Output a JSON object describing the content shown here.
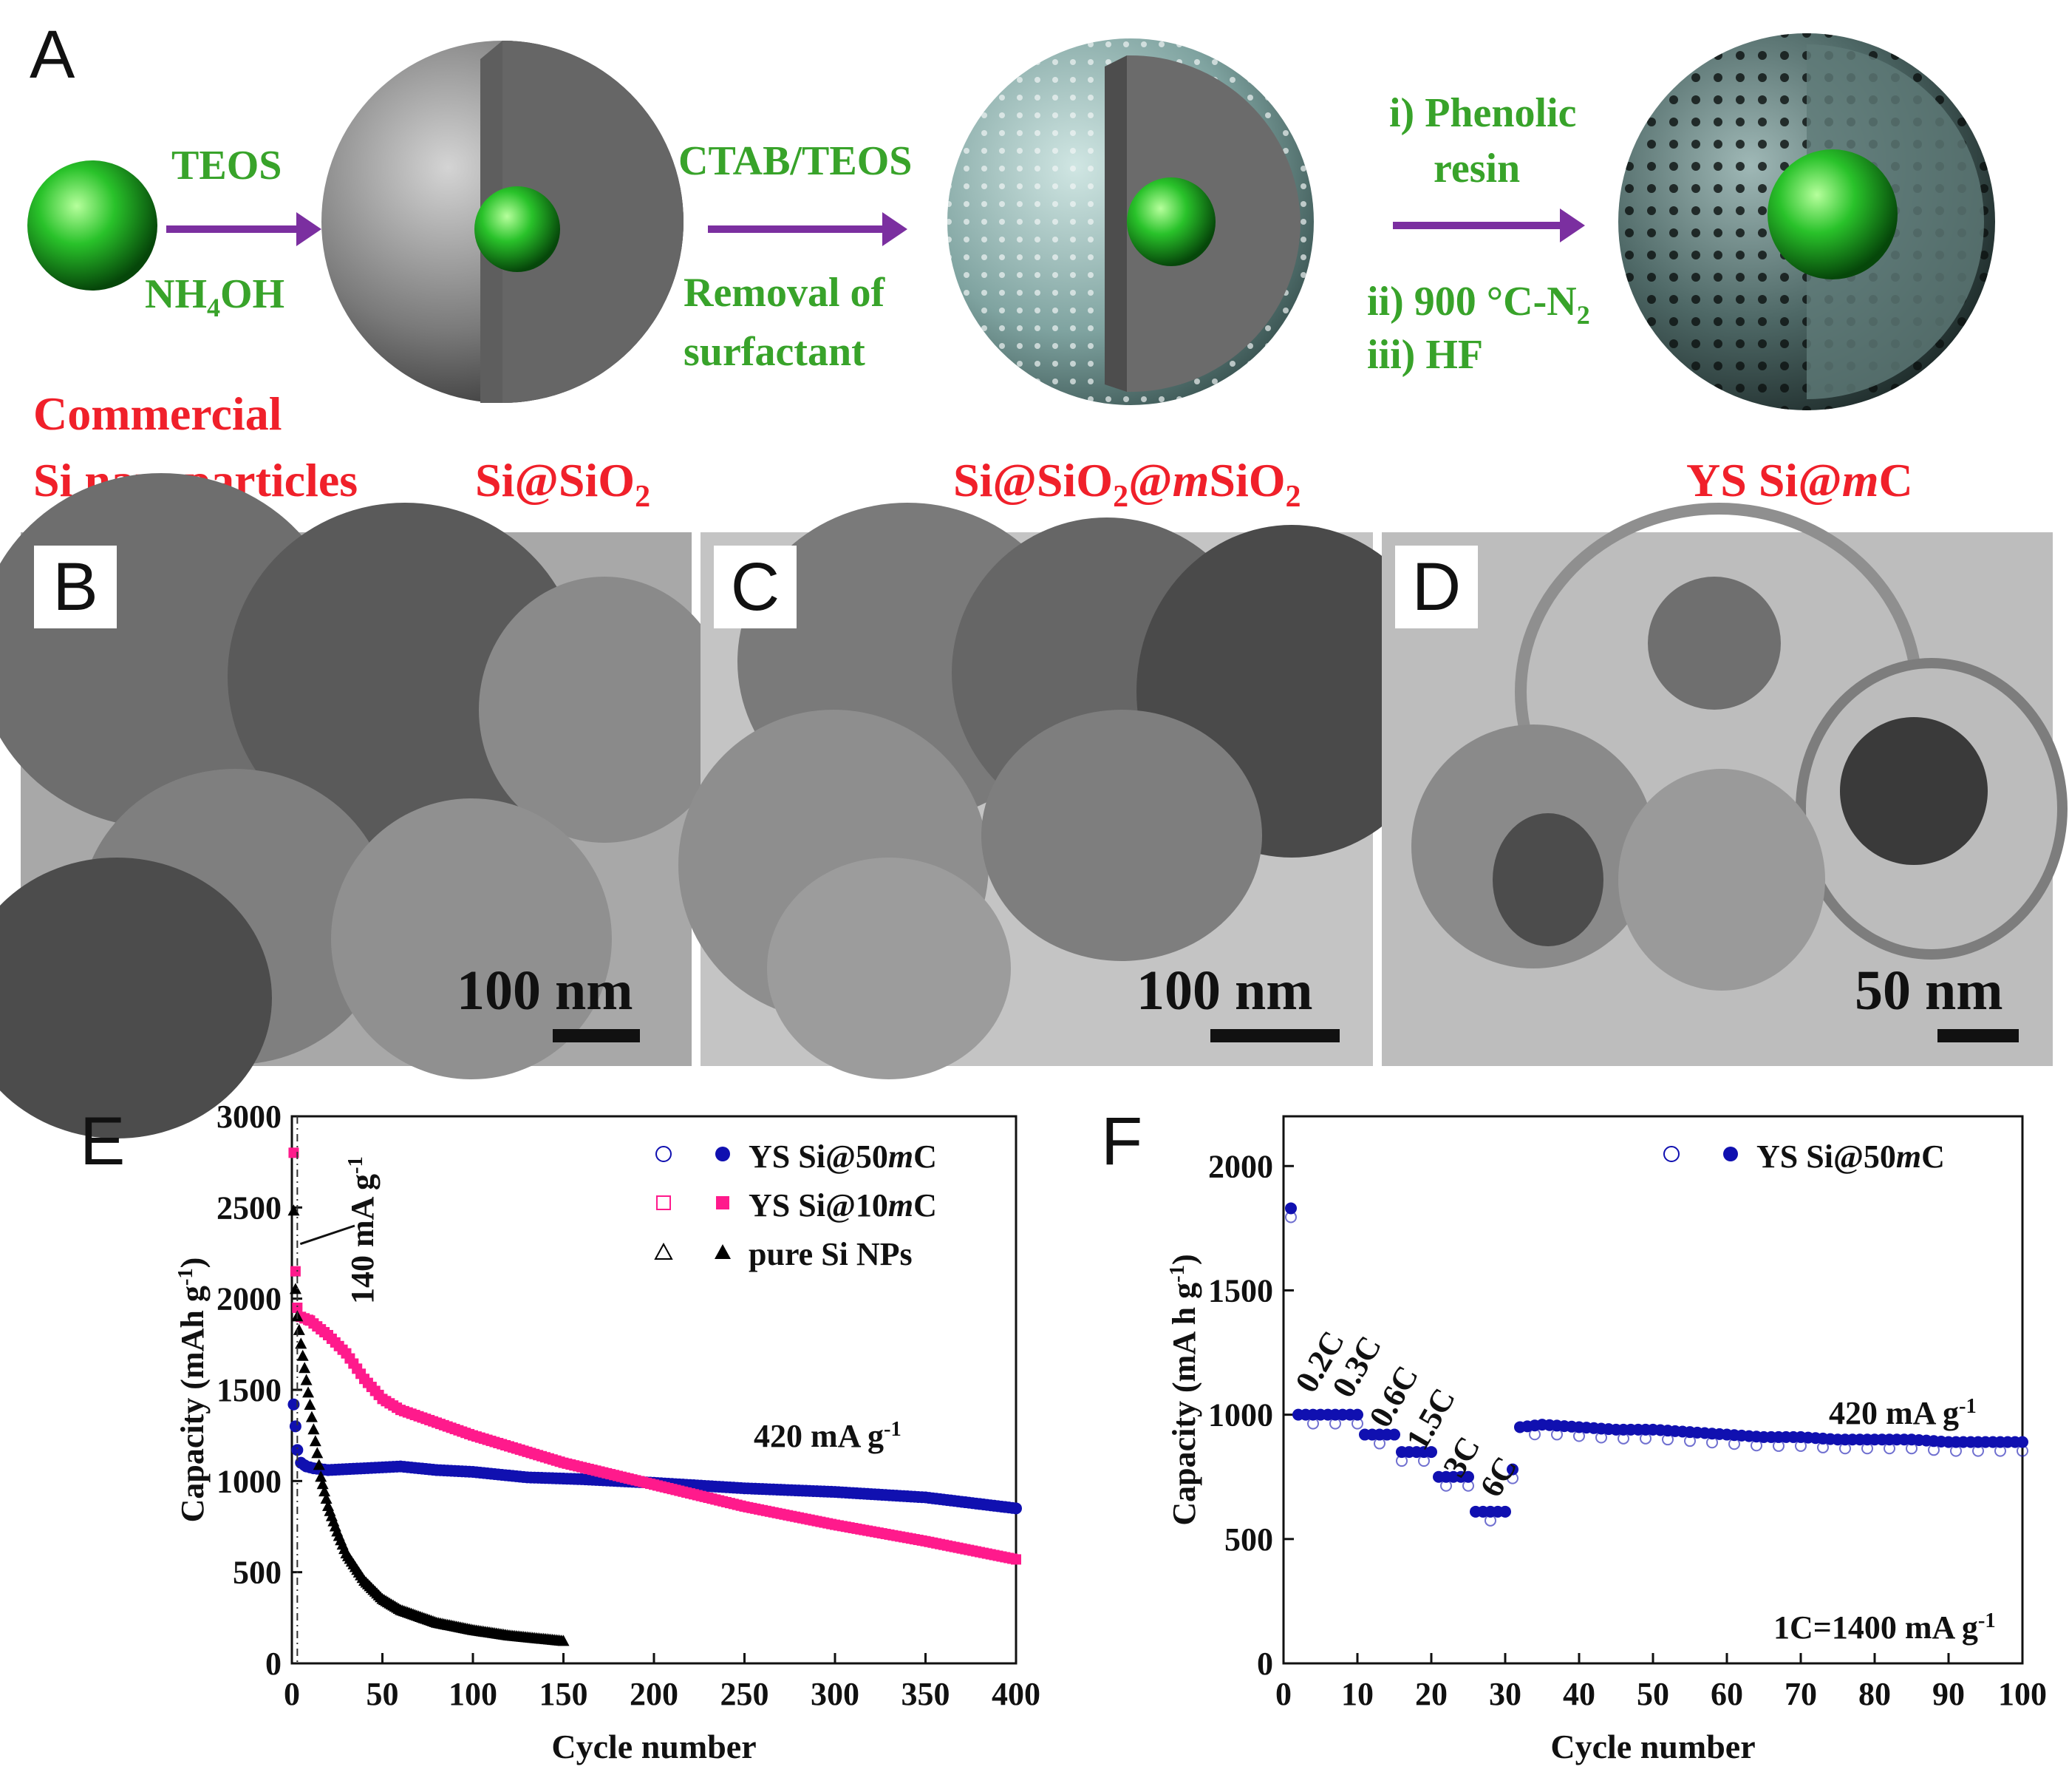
{
  "panel_a": {
    "letter": "A",
    "step1_top": "TEOS",
    "step1_bottom": "NH",
    "step1_bottom_sub": "4",
    "step1_bottom_end": "OH",
    "step2_top": "CTAB/TEOS",
    "step2_bottom_1": "Removal of",
    "step2_bottom_2": "surfactant",
    "step3_top_1": "i) Phenolic",
    "step3_top_2": "resin",
    "step3_bottom_1": "ii) 900 °C-N",
    "step3_bottom_1_sub": "2",
    "step3_bottom_2": "iii) HF",
    "label1_line1": "Commercial",
    "label1_line2": "Si nanoparticles",
    "label2_pre": "Si@SiO",
    "label2_sub": "2",
    "label3_pre": "Si@SiO",
    "label3_sub1": "2",
    "label3_mid": "@",
    "label3_m": "m",
    "label3_end": "SiO",
    "label3_sub2": "2",
    "label4_pre": "YS Si@",
    "label4_m": "m",
    "label4_end": "C",
    "colors": {
      "arrow": "#7b2fa0",
      "green_text": "#38a32a",
      "red_text": "#f0202a"
    }
  },
  "panel_b": {
    "letter": "B",
    "scale": "100 nm"
  },
  "panel_c": {
    "letter": "C",
    "scale": "100 nm"
  },
  "panel_d": {
    "letter": "D",
    "scale": "50 nm"
  },
  "chart_data": [
    {
      "panel": "E",
      "type": "scatter",
      "xlabel": "Cycle number",
      "ylabel": "Capacity (mAh g",
      "ylabel_sup": "-1",
      "ylabel_end": ")",
      "xlim": [
        0,
        400
      ],
      "ylim": [
        0,
        3000
      ],
      "xticks": [
        0,
        50,
        100,
        150,
        200,
        250,
        300,
        350,
        400
      ],
      "yticks": [
        0,
        500,
        1000,
        1500,
        2000,
        2500,
        3000
      ],
      "annotation_rate": "420 mA g",
      "annotation_rate_sup": "-1",
      "annotation_initial": "140 mA g",
      "annotation_initial_sup": "-1",
      "legend": [
        {
          "name": "YS Si@50",
          "name_m": "m",
          "name_end": "C",
          "color": "#1010b0"
        },
        {
          "name": "YS Si@10",
          "name_m": "m",
          "name_end": "C",
          "color": "#ff1a8c"
        },
        {
          "name": "pure Si NPs",
          "name_m": "",
          "name_end": "",
          "color": "#000000"
        }
      ],
      "series": [
        {
          "name": "YS Si@50mC",
          "color": "#1010b0",
          "x": [
            1,
            2,
            3,
            5,
            8,
            12,
            20,
            40,
            60,
            80,
            100,
            130,
            160,
            200,
            250,
            300,
            350,
            400
          ],
          "y": [
            1420,
            1300,
            1170,
            1100,
            1080,
            1070,
            1060,
            1070,
            1080,
            1060,
            1050,
            1020,
            1010,
            990,
            960,
            940,
            910,
            850
          ]
        },
        {
          "name": "YS Si@10mC",
          "color": "#ff1a8c",
          "x": [
            1,
            2,
            3,
            5,
            10,
            20,
            30,
            40,
            50,
            60,
            80,
            100,
            150,
            200,
            250,
            300,
            350,
            400
          ],
          "y": [
            2800,
            2150,
            1950,
            1900,
            1880,
            1800,
            1700,
            1560,
            1450,
            1390,
            1320,
            1250,
            1100,
            980,
            860,
            760,
            670,
            570
          ]
        },
        {
          "name": "pure Si NPs",
          "color": "#000000",
          "x": [
            1,
            2,
            3,
            5,
            8,
            12,
            16,
            20,
            25,
            30,
            40,
            50,
            60,
            80,
            100,
            120,
            150
          ],
          "y": [
            2480,
            2050,
            1900,
            1750,
            1550,
            1280,
            1020,
            860,
            720,
            600,
            450,
            350,
            290,
            220,
            180,
            150,
            120
          ]
        }
      ]
    },
    {
      "panel": "F",
      "type": "scatter",
      "xlabel": "Cycle number",
      "ylabel": "Capacity (mA h g",
      "ylabel_sup": "-1",
      "ylabel_end": ")",
      "xlim": [
        0,
        100
      ],
      "ylim": [
        0,
        2200
      ],
      "xticks": [
        0,
        10,
        20,
        30,
        40,
        50,
        60,
        70,
        80,
        90,
        100
      ],
      "yticks": [
        0,
        500,
        1000,
        1500,
        2000
      ],
      "annotation_rate": "420 mA g",
      "annotation_rate_sup": "-1",
      "annotation_c": "1C=1400 mA g",
      "annotation_c_sup": "-1",
      "rate_labels": [
        {
          "text": "0.2C",
          "x": 4,
          "y": 1080
        },
        {
          "text": "0.3C",
          "x": 9,
          "y": 1060
        },
        {
          "text": "0.6C",
          "x": 14,
          "y": 940
        },
        {
          "text": "1.5C",
          "x": 19,
          "y": 850
        },
        {
          "text": "3C",
          "x": 24,
          "y": 740
        },
        {
          "text": "6C",
          "x": 29,
          "y": 660
        }
      ],
      "legend": [
        {
          "name": "YS Si@50",
          "name_m": "m",
          "name_end": "C",
          "color": "#1010b0"
        }
      ],
      "series": [
        {
          "name": "YS Si@50mC",
          "color": "#1010b0",
          "x": [
            1,
            2,
            3,
            4,
            5,
            6,
            7,
            8,
            9,
            10,
            11,
            12,
            13,
            14,
            15,
            16,
            17,
            18,
            19,
            20,
            21,
            22,
            23,
            24,
            25,
            26,
            27,
            28,
            29,
            30,
            32,
            35,
            40,
            45,
            50,
            55,
            60,
            65,
            70,
            75,
            80,
            85,
            90,
            95,
            100
          ],
          "y": [
            1830,
            1000,
            1000,
            1000,
            1000,
            1000,
            1000,
            1000,
            1000,
            1000,
            920,
            920,
            920,
            920,
            920,
            850,
            850,
            850,
            850,
            850,
            750,
            750,
            750,
            750,
            750,
            610,
            610,
            610,
            610,
            610,
            950,
            960,
            950,
            940,
            940,
            930,
            920,
            910,
            910,
            900,
            900,
            900,
            890,
            890,
            890
          ]
        }
      ]
    }
  ]
}
